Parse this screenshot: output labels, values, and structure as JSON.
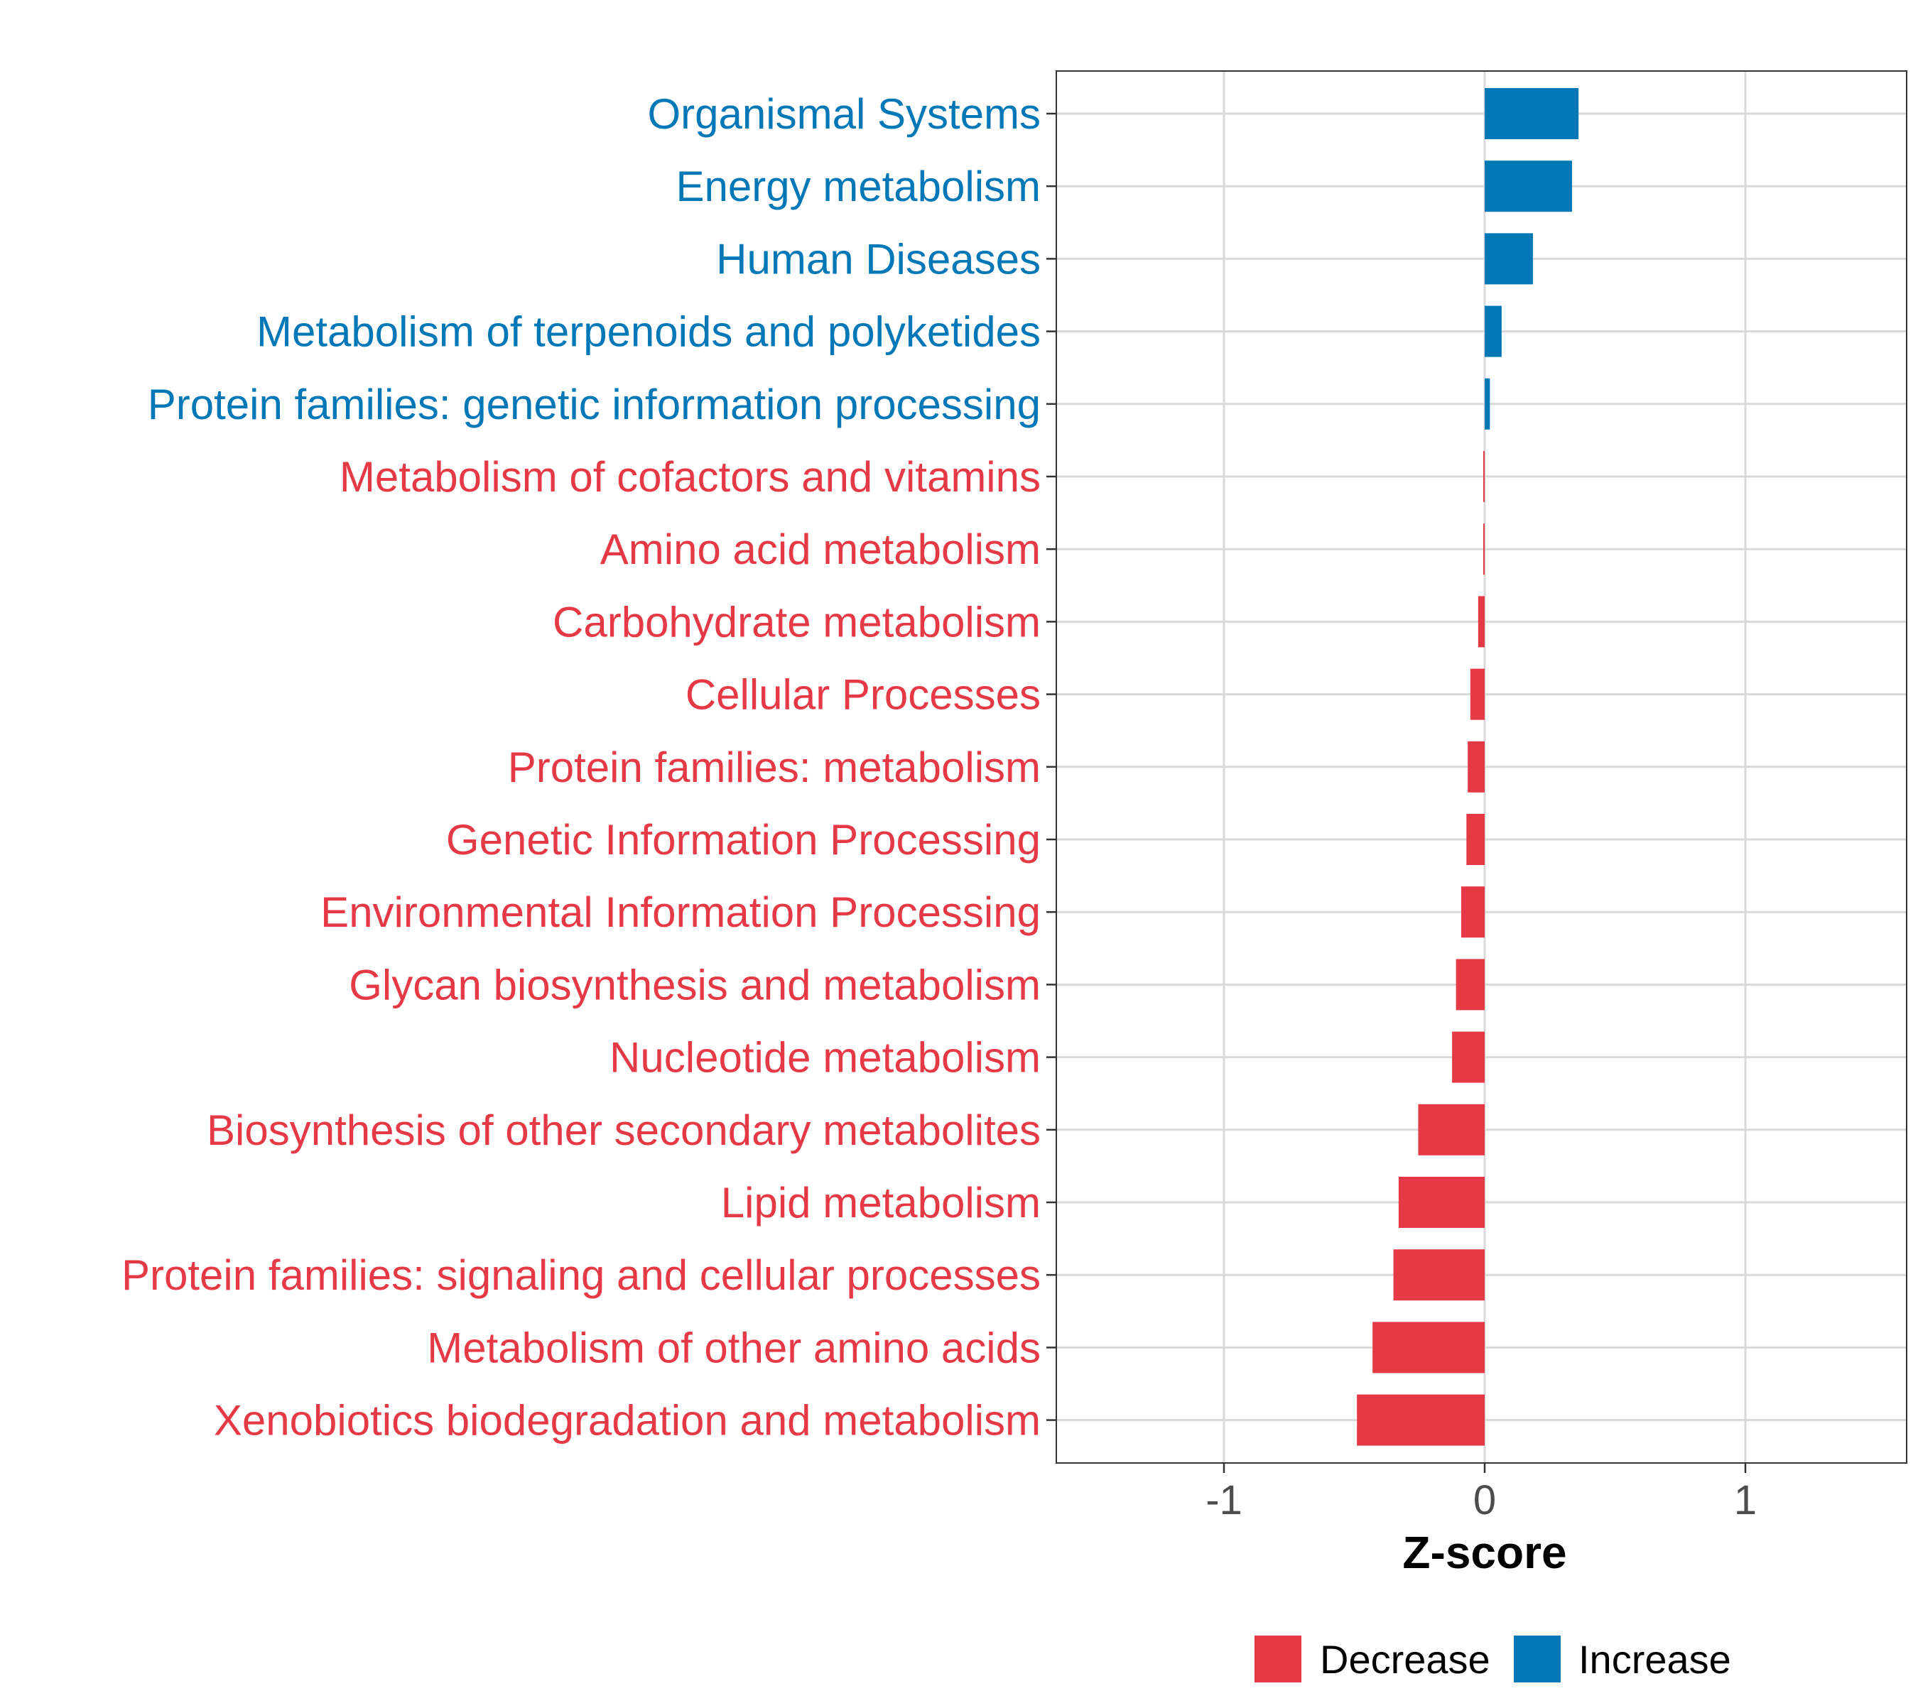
{
  "chart_data": {
    "type": "bar",
    "orientation": "horizontal",
    "title": "",
    "xlabel": "Z-score",
    "ylabel": "",
    "xlim": [
      -1.6,
      1.6
    ],
    "xticks": [
      -1,
      0,
      1
    ],
    "xtick_labels": [
      "-1",
      "0",
      "1"
    ],
    "grid": true,
    "legend_position": "bottom",
    "categories": [
      "Organismal Systems",
      "Energy metabolism",
      "Human Diseases",
      "Metabolism of terpenoids and polyketides",
      "Protein families: genetic information processing",
      "Metabolism of cofactors and vitamins",
      "Amino acid metabolism",
      "Carbohydrate metabolism",
      "Cellular Processes",
      "Protein families: metabolism",
      "Genetic Information Processing",
      "Environmental Information Processing",
      "Glycan biosynthesis and metabolism",
      "Nucleotide metabolism",
      "Biosynthesis of other secondary metabolites",
      "Lipid metabolism",
      "Protein families: signaling and cellular processes",
      "Metabolism of other amino acids",
      "Xenobiotics biodegradation and metabolism"
    ],
    "values": [
      0.36,
      0.335,
      0.185,
      0.065,
      0.02,
      -0.005,
      -0.005,
      -0.025,
      -0.055,
      -0.065,
      -0.07,
      -0.09,
      -0.11,
      -0.125,
      -0.255,
      -0.33,
      -0.35,
      -0.43,
      -0.49
    ],
    "direction": [
      "Increase",
      "Increase",
      "Increase",
      "Increase",
      "Increase",
      "Decrease",
      "Decrease",
      "Decrease",
      "Decrease",
      "Decrease",
      "Decrease",
      "Decrease",
      "Decrease",
      "Decrease",
      "Decrease",
      "Decrease",
      "Decrease",
      "Decrease",
      "Decrease"
    ],
    "legend": [
      {
        "name": "Decrease",
        "color": "#E63946"
      },
      {
        "name": "Increase",
        "color": "#0077B6"
      }
    ],
    "colors": {
      "Decrease": "#E63946",
      "Increase": "#0077B6",
      "grid": "#D9D9D9",
      "axis": "#333333",
      "tick_text": "#4D4D4D",
      "title_text": "#000000"
    }
  }
}
